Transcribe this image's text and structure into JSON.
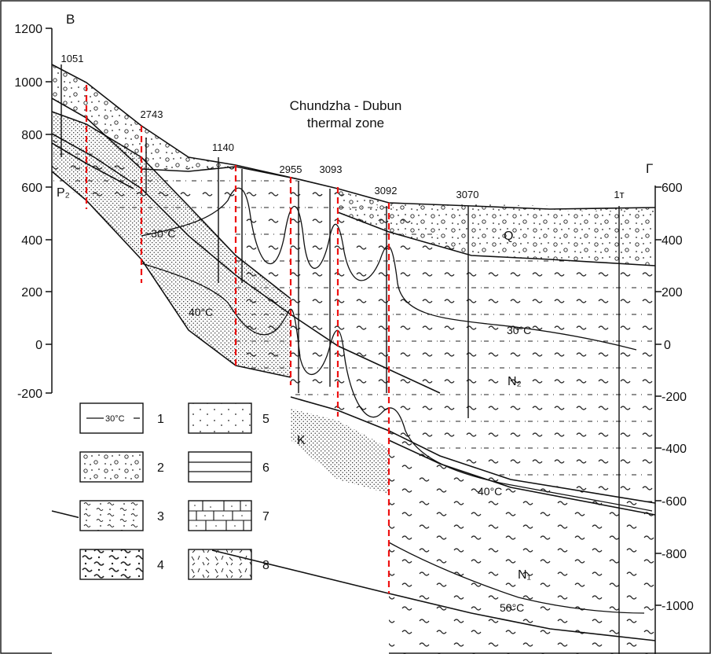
{
  "figure": {
    "title_line1": "Chundzha - Dubun",
    "title_line2": "thermal zone",
    "corner_left": "B",
    "corner_right": "Г"
  },
  "left_axis": {
    "ticks": [
      {
        "value": 1200,
        "label": "1200"
      },
      {
        "value": 1000,
        "label": "1000"
      },
      {
        "value": 800,
        "label": "800"
      },
      {
        "value": 600,
        "label": "600"
      },
      {
        "value": 400,
        "label": "400"
      },
      {
        "value": 200,
        "label": "200"
      },
      {
        "value": 0,
        "label": "0"
      },
      {
        "value": -200,
        "label": "-200"
      }
    ]
  },
  "right_axis": {
    "ticks": [
      {
        "value": 600,
        "label": "600"
      },
      {
        "value": 400,
        "label": "400"
      },
      {
        "value": 200,
        "label": "200"
      },
      {
        "value": 0,
        "label": "0"
      },
      {
        "value": -200,
        "label": "-200"
      },
      {
        "value": -400,
        "label": "-400"
      },
      {
        "value": -600,
        "label": "-600"
      },
      {
        "value": -800,
        "label": "-800"
      },
      {
        "value": -1000,
        "label": "-1000"
      }
    ]
  },
  "wells": [
    {
      "label": "1051"
    },
    {
      "label": "2743"
    },
    {
      "label": "1140"
    },
    {
      "label": "2955"
    },
    {
      "label": "3093"
    },
    {
      "label": "3092"
    },
    {
      "label": "3070"
    },
    {
      "label": "1т"
    }
  ],
  "units": {
    "q": "Q",
    "n2": "N₂",
    "n1": "N₁",
    "k": "K",
    "p2": "P₂"
  },
  "isotherms": {
    "t30_left": "~30°C",
    "t30_right": "30°C",
    "t40_left": "40°C",
    "t40_right": "40°C",
    "t50": "50°C"
  },
  "legend": {
    "items": [
      {
        "num": "1",
        "sample": "30°C"
      },
      {
        "num": "2"
      },
      {
        "num": "3"
      },
      {
        "num": "4"
      },
      {
        "num": "5"
      },
      {
        "num": "6"
      },
      {
        "num": "7"
      },
      {
        "num": "8"
      }
    ]
  }
}
